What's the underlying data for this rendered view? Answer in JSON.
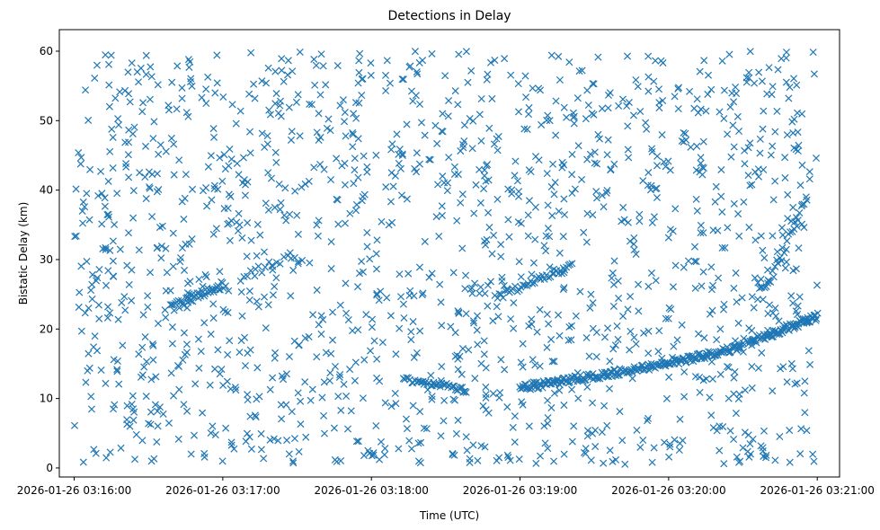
{
  "chart_data": {
    "type": "scatter",
    "title": "Detections in Delay",
    "xlabel": "Time (UTC)",
    "ylabel": "Bistatic Delay (km)",
    "marker": "x",
    "color": "#1f77b4",
    "grid": false,
    "legend": "none",
    "x_scale": "datetime",
    "xlim": [
      "2026-01-26 03:15:54",
      "2026-01-26 03:21:09"
    ],
    "ylim": [
      -1.3,
      63.1
    ],
    "x_ticks": [
      "2026-01-26 03:16:00",
      "2026-01-26 03:17:00",
      "2026-01-26 03:18:00",
      "2026-01-26 03:19:00",
      "2026-01-26 03:20:00",
      "2026-01-26 03:21:00"
    ],
    "y_ticks": [
      0,
      10,
      20,
      30,
      40,
      50,
      60
    ],
    "time_range": [
      "2026-01-26 03:16:00",
      "2026-01-26 03:21:00"
    ],
    "noise": {
      "count": 1500,
      "y_range": [
        0.5,
        60
      ]
    },
    "tracks": [
      {
        "start": "2026-01-26 03:16:39",
        "end": "2026-01-26 03:17:01",
        "y_start": 23.0,
        "y_end": 26.5,
        "points": 45,
        "spread": 0.6
      },
      {
        "start": "2026-01-26 03:17:07",
        "end": "2026-01-26 03:17:32",
        "y_start": 27.5,
        "y_end": 30.5,
        "points": 18,
        "spread": 0.8
      },
      {
        "start": "2026-01-26 03:18:13",
        "end": "2026-01-26 03:18:38",
        "y_start": 12.8,
        "y_end": 11.3,
        "points": 40,
        "spread": 0.4
      },
      {
        "start": "2026-01-26 03:18:50",
        "end": "2026-01-26 03:19:21",
        "y_start": 24.5,
        "y_end": 29.0,
        "points": 40,
        "spread": 0.5
      },
      {
        "start": "2026-01-26 03:19:00",
        "end": "2026-01-26 03:19:58",
        "y_start": 11.5,
        "y_end": 14.8,
        "points": 130,
        "spread": 0.5
      },
      {
        "start": "2026-01-26 03:19:58",
        "end": "2026-01-26 03:20:30",
        "y_start": 14.8,
        "y_end": 17.5,
        "points": 80,
        "spread": 0.5
      },
      {
        "start": "2026-01-26 03:20:32",
        "end": "2026-01-26 03:21:00",
        "y_start": 18.0,
        "y_end": 21.8,
        "points": 80,
        "spread": 0.5
      },
      {
        "start": "2026-01-26 03:20:38",
        "end": "2026-01-26 03:20:56",
        "y_start": 25.0,
        "y_end": 39.0,
        "points": 30,
        "spread": 1.0
      }
    ]
  }
}
